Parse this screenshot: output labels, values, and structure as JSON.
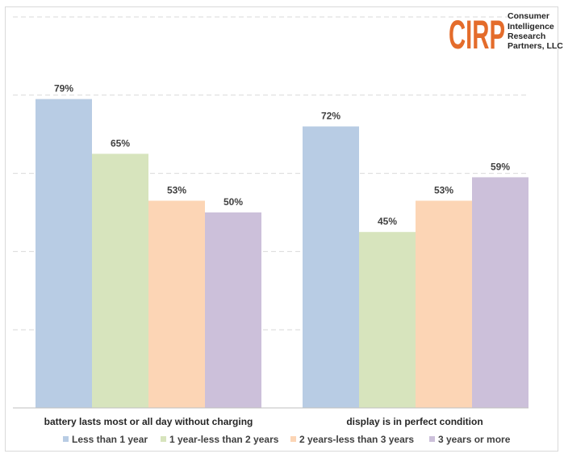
{
  "logo": {
    "mark": "CIRP",
    "lines": [
      "Consumer",
      "Intelligence",
      "Research",
      "Partners, LLC"
    ],
    "color": "#e46c2b"
  },
  "chart_data": {
    "type": "bar",
    "title": "",
    "xlabel": "",
    "ylabel": "",
    "ylim": [
      0,
      100
    ],
    "grid": true,
    "legend_position": "bottom",
    "categories": [
      "battery lasts most or all day without charging",
      "display is in perfect condition"
    ],
    "series": [
      {
        "name": "Less than 1 year",
        "values": [
          79,
          72
        ],
        "labels": [
          "79%",
          "72%"
        ],
        "color": "#b8cce4"
      },
      {
        "name": "1 year-less than 2 years",
        "values": [
          65,
          45
        ],
        "labels": [
          "65%",
          "45%"
        ],
        "color": "#d7e4bd"
      },
      {
        "name": "2 years-less than 3 years",
        "values": [
          53,
          53
        ],
        "labels": [
          "53%",
          "53%"
        ],
        "color": "#fcd5b5"
      },
      {
        "name": "3 years or more",
        "values": [
          50,
          59
        ],
        "labels": [
          "50%",
          "59%"
        ],
        "color": "#ccc0da"
      }
    ]
  }
}
